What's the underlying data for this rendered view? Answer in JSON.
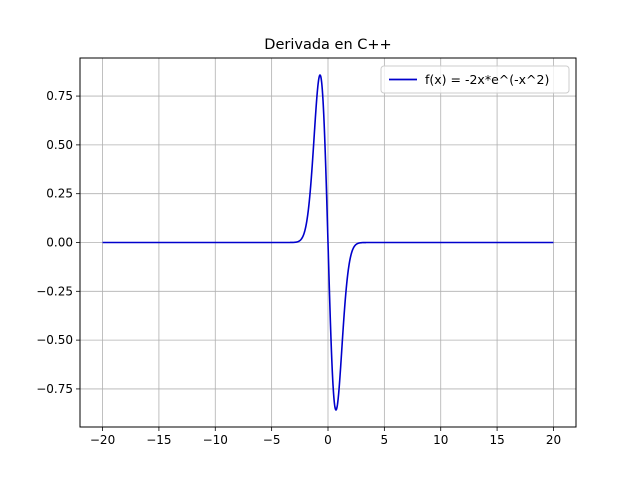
{
  "chart_data": {
    "type": "line",
    "title": "Derivada en C++",
    "xlabel": "",
    "ylabel": "",
    "xlim": [
      -22.0,
      22.0
    ],
    "ylim": [
      -0.945,
      0.945
    ],
    "xticks": [
      -20,
      -15,
      -10,
      -5,
      0,
      5,
      10,
      15,
      20
    ],
    "xtick_labels": [
      "−20",
      "−15",
      "−10",
      "−5",
      "0",
      "5",
      "10",
      "15",
      "20"
    ],
    "yticks": [
      -0.75,
      -0.5,
      -0.25,
      0.0,
      0.25,
      0.5,
      0.75
    ],
    "ytick_labels": [
      "−0.75",
      "−0.50",
      "−0.25",
      "0.00",
      "0.25",
      "0.50",
      "0.75"
    ],
    "grid": true,
    "legend_position": "top-right",
    "series": [
      {
        "name": "f(x) = -2x*e^(-x^2)",
        "color": "#0000cc",
        "x_range": [
          -20,
          20
        ],
        "x": [
          -20,
          -4,
          -3,
          -2.5,
          -2,
          -1.75,
          -1.5,
          -1.25,
          -1,
          -0.75,
          -0.5,
          -0.25,
          0,
          0.25,
          0.5,
          0.75,
          1,
          1.25,
          1.5,
          1.75,
          2,
          2.5,
          3,
          4,
          20
        ],
        "y": [
          0,
          0.0,
          0.0007,
          0.0097,
          0.0733,
          0.1636,
          0.3162,
          0.5241,
          0.7358,
          0.8544,
          0.7788,
          0.4697,
          0,
          -0.4697,
          -0.7788,
          -0.8544,
          -0.7358,
          -0.5241,
          -0.3162,
          -0.1636,
          -0.0733,
          -0.0097,
          -0.0007,
          0.0,
          0
        ]
      }
    ]
  }
}
